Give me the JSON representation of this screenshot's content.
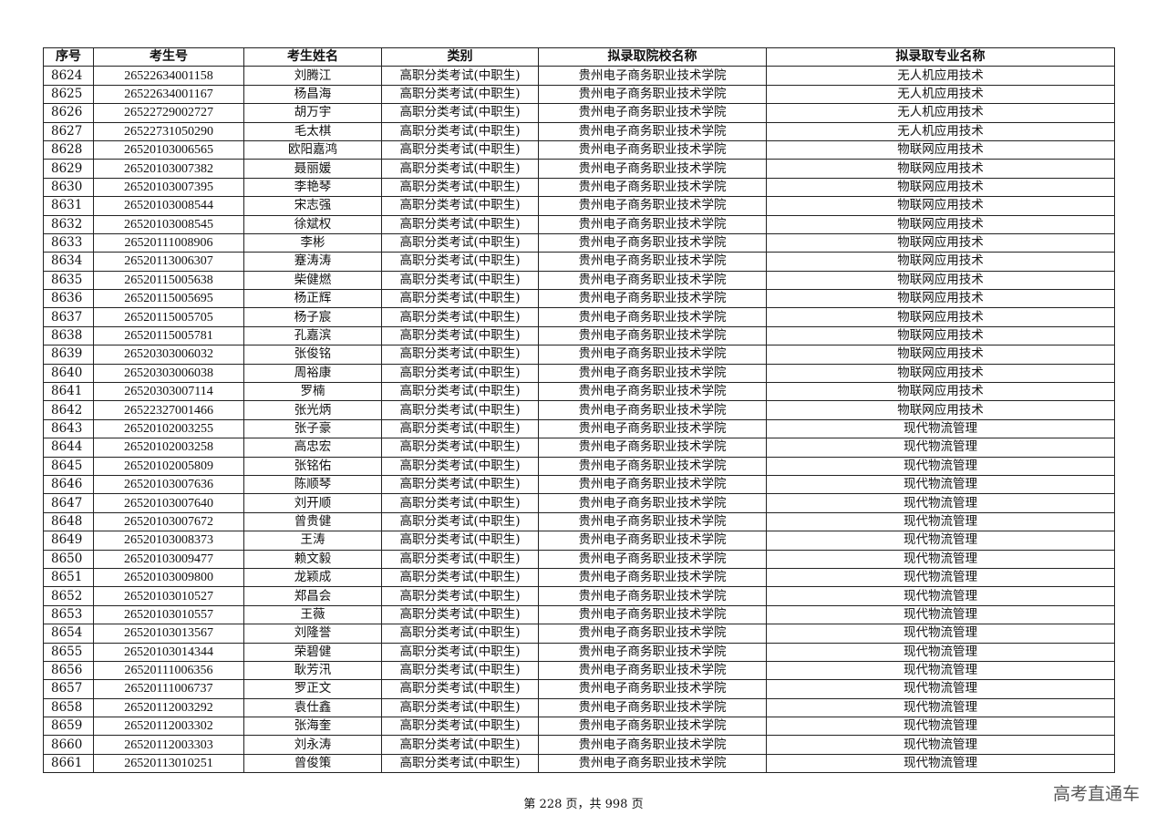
{
  "table": {
    "headers": [
      "序号",
      "考生号",
      "考生姓名",
      "类别",
      "拟录取院校名称",
      "拟录取专业名称"
    ],
    "rows": [
      [
        "8624",
        "26522634001158",
        "刘腾江",
        "高职分类考试(中职生)",
        "贵州电子商务职业技术学院",
        "无人机应用技术"
      ],
      [
        "8625",
        "26522634001167",
        "杨昌海",
        "高职分类考试(中职生)",
        "贵州电子商务职业技术学院",
        "无人机应用技术"
      ],
      [
        "8626",
        "26522729002727",
        "胡万宇",
        "高职分类考试(中职生)",
        "贵州电子商务职业技术学院",
        "无人机应用技术"
      ],
      [
        "8627",
        "26522731050290",
        "毛太棋",
        "高职分类考试(中职生)",
        "贵州电子商务职业技术学院",
        "无人机应用技术"
      ],
      [
        "8628",
        "26520103006565",
        "欧阳嘉鸿",
        "高职分类考试(中职生)",
        "贵州电子商务职业技术学院",
        "物联网应用技术"
      ],
      [
        "8629",
        "26520103007382",
        "聂丽媛",
        "高职分类考试(中职生)",
        "贵州电子商务职业技术学院",
        "物联网应用技术"
      ],
      [
        "8630",
        "26520103007395",
        "李艳琴",
        "高职分类考试(中职生)",
        "贵州电子商务职业技术学院",
        "物联网应用技术"
      ],
      [
        "8631",
        "26520103008544",
        "宋志强",
        "高职分类考试(中职生)",
        "贵州电子商务职业技术学院",
        "物联网应用技术"
      ],
      [
        "8632",
        "26520103008545",
        "徐斌权",
        "高职分类考试(中职生)",
        "贵州电子商务职业技术学院",
        "物联网应用技术"
      ],
      [
        "8633",
        "26520111008906",
        "李彬",
        "高职分类考试(中职生)",
        "贵州电子商务职业技术学院",
        "物联网应用技术"
      ],
      [
        "8634",
        "26520113006307",
        "蹇涛涛",
        "高职分类考试(中职生)",
        "贵州电子商务职业技术学院",
        "物联网应用技术"
      ],
      [
        "8635",
        "26520115005638",
        "柴健燃",
        "高职分类考试(中职生)",
        "贵州电子商务职业技术学院",
        "物联网应用技术"
      ],
      [
        "8636",
        "26520115005695",
        "杨正辉",
        "高职分类考试(中职生)",
        "贵州电子商务职业技术学院",
        "物联网应用技术"
      ],
      [
        "8637",
        "26520115005705",
        "杨子宸",
        "高职分类考试(中职生)",
        "贵州电子商务职业技术学院",
        "物联网应用技术"
      ],
      [
        "8638",
        "26520115005781",
        "孔嘉滨",
        "高职分类考试(中职生)",
        "贵州电子商务职业技术学院",
        "物联网应用技术"
      ],
      [
        "8639",
        "26520303006032",
        "张俊铭",
        "高职分类考试(中职生)",
        "贵州电子商务职业技术学院",
        "物联网应用技术"
      ],
      [
        "8640",
        "26520303006038",
        "周裕康",
        "高职分类考试(中职生)",
        "贵州电子商务职业技术学院",
        "物联网应用技术"
      ],
      [
        "8641",
        "26520303007114",
        "罗楠",
        "高职分类考试(中职生)",
        "贵州电子商务职业技术学院",
        "物联网应用技术"
      ],
      [
        "8642",
        "26522327001466",
        "张光炳",
        "高职分类考试(中职生)",
        "贵州电子商务职业技术学院",
        "物联网应用技术"
      ],
      [
        "8643",
        "26520102003255",
        "张子豪",
        "高职分类考试(中职生)",
        "贵州电子商务职业技术学院",
        "现代物流管理"
      ],
      [
        "8644",
        "26520102003258",
        "高忠宏",
        "高职分类考试(中职生)",
        "贵州电子商务职业技术学院",
        "现代物流管理"
      ],
      [
        "8645",
        "26520102005809",
        "张铭佑",
        "高职分类考试(中职生)",
        "贵州电子商务职业技术学院",
        "现代物流管理"
      ],
      [
        "8646",
        "26520103007636",
        "陈顺琴",
        "高职分类考试(中职生)",
        "贵州电子商务职业技术学院",
        "现代物流管理"
      ],
      [
        "8647",
        "26520103007640",
        "刘开顺",
        "高职分类考试(中职生)",
        "贵州电子商务职业技术学院",
        "现代物流管理"
      ],
      [
        "8648",
        "26520103007672",
        "曾贵健",
        "高职分类考试(中职生)",
        "贵州电子商务职业技术学院",
        "现代物流管理"
      ],
      [
        "8649",
        "26520103008373",
        "王涛",
        "高职分类考试(中职生)",
        "贵州电子商务职业技术学院",
        "现代物流管理"
      ],
      [
        "8650",
        "26520103009477",
        "赖文毅",
        "高职分类考试(中职生)",
        "贵州电子商务职业技术学院",
        "现代物流管理"
      ],
      [
        "8651",
        "26520103009800",
        "龙颖成",
        "高职分类考试(中职生)",
        "贵州电子商务职业技术学院",
        "现代物流管理"
      ],
      [
        "8652",
        "26520103010527",
        "郑昌会",
        "高职分类考试(中职生)",
        "贵州电子商务职业技术学院",
        "现代物流管理"
      ],
      [
        "8653",
        "26520103010557",
        "王薇",
        "高职分类考试(中职生)",
        "贵州电子商务职业技术学院",
        "现代物流管理"
      ],
      [
        "8654",
        "26520103013567",
        "刘隆誉",
        "高职分类考试(中职生)",
        "贵州电子商务职业技术学院",
        "现代物流管理"
      ],
      [
        "8655",
        "26520103014344",
        "荣碧健",
        "高职分类考试(中职生)",
        "贵州电子商务职业技术学院",
        "现代物流管理"
      ],
      [
        "8656",
        "26520111006356",
        "耿芳汛",
        "高职分类考试(中职生)",
        "贵州电子商务职业技术学院",
        "现代物流管理"
      ],
      [
        "8657",
        "26520111006737",
        "罗正文",
        "高职分类考试(中职生)",
        "贵州电子商务职业技术学院",
        "现代物流管理"
      ],
      [
        "8658",
        "26520112003292",
        "袁仕鑫",
        "高职分类考试(中职生)",
        "贵州电子商务职业技术学院",
        "现代物流管理"
      ],
      [
        "8659",
        "26520112003302",
        "张海奎",
        "高职分类考试(中职生)",
        "贵州电子商务职业技术学院",
        "现代物流管理"
      ],
      [
        "8660",
        "26520112003303",
        "刘永涛",
        "高职分类考试(中职生)",
        "贵州电子商务职业技术学院",
        "现代物流管理"
      ],
      [
        "8661",
        "26520113010251",
        "曾俊策",
        "高职分类考试(中职生)",
        "贵州电子商务职业技术学院",
        "现代物流管理"
      ]
    ]
  },
  "footer": {
    "page_text": "第 228 页，共 998 页"
  },
  "watermark": {
    "text": "高考直通车"
  }
}
